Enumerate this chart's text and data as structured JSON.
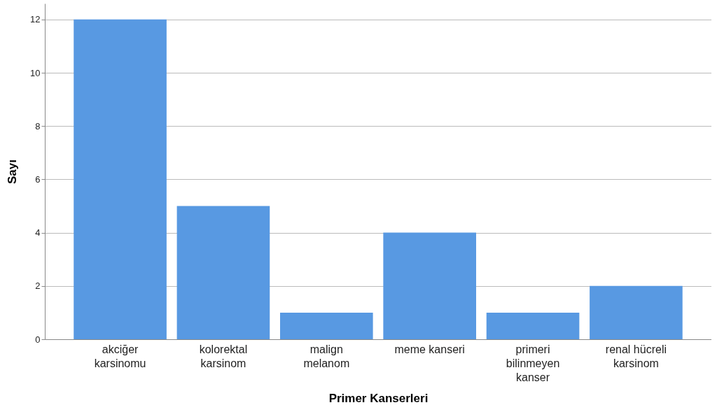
{
  "chart_data": {
    "type": "bar",
    "xlabel": "Primer Kanserleri",
    "ylabel": "Sayı",
    "categories": [
      "akciğer karsinomu",
      "kolorektal karsinom",
      "malign melanom",
      "meme kanseri",
      "primeri bilinmeyen kanser",
      "renal hücreli karsinom"
    ],
    "values": [
      12,
      5,
      1,
      4,
      1,
      2
    ],
    "color": "#5899e2",
    "ylim": [
      0,
      12.6
    ],
    "yticks": [
      0,
      2,
      4,
      6,
      8,
      10,
      12
    ],
    "grid": "y"
  }
}
